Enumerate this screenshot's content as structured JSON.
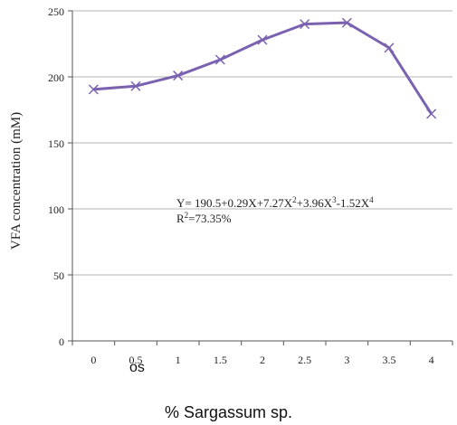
{
  "chart_data": {
    "type": "line",
    "title": "",
    "xlabel": "% Sargassum sp.",
    "ylabel": "VFA concentration (mM)",
    "x": [
      0,
      0.5,
      1,
      1.5,
      2,
      2.5,
      3,
      3.5,
      4
    ],
    "xticks": [
      "0",
      "0.5",
      "1",
      "1.5",
      "2",
      "2.5",
      "3",
      "3.5",
      "4"
    ],
    "yticks": [
      "0",
      "50",
      "100",
      "150",
      "200",
      "250"
    ],
    "xlim": [
      -0.25,
      4.25
    ],
    "ylim": [
      0,
      250
    ],
    "grid": "horizontal",
    "series": [
      {
        "values": [
          190.5,
          193,
          201,
          213,
          228,
          240,
          241,
          222,
          172
        ],
        "color": "#7b62b0",
        "marker": "x"
      }
    ],
    "annotation": {
      "equation_prefix": "Y= 190.5+0.29X+7.27X",
      "sup1": "2",
      "eq_part2": "+3.96X",
      "sup2": "3",
      "eq_part3": "-1.52X",
      "sup3": "4",
      "r2_prefix": "R",
      "r2_sup": "2",
      "r2_value": "=73.35%"
    },
    "overlay_text": "os"
  }
}
